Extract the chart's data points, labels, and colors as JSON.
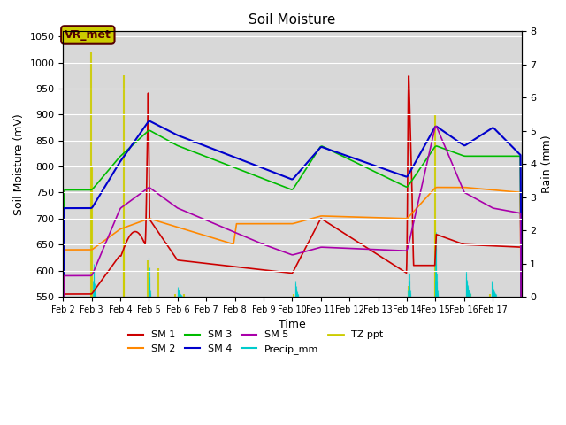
{
  "title": "Soil Moisture",
  "xlabel": "Time",
  "ylabel_left": "Soil Moisture (mV)",
  "ylabel_right": "Rain (mm)",
  "ylim_left": [
    550,
    1060
  ],
  "ylim_right": [
    0.0,
    8.0
  ],
  "yticks_left": [
    550,
    600,
    650,
    700,
    750,
    800,
    850,
    900,
    950,
    1000,
    1050
  ],
  "yticks_right": [
    0.0,
    1.0,
    2.0,
    3.0,
    4.0,
    5.0,
    6.0,
    7.0,
    8.0
  ],
  "xlim": [
    1,
    17
  ],
  "xtick_labels": [
    "Feb 2",
    "Feb 3",
    "Feb 4",
    "Feb 5",
    "Feb 6",
    "Feb 7",
    "Feb 8",
    "Feb 9",
    "Feb 10",
    "Feb 11",
    "Feb 12",
    "Feb 13",
    "Feb 14",
    "Feb 15",
    "Feb 16",
    "Feb 17"
  ],
  "xtick_positions": [
    1,
    2,
    3,
    4,
    5,
    6,
    7,
    8,
    9,
    10,
    11,
    12,
    13,
    14,
    15,
    16
  ],
  "colors": {
    "SM1": "#cc0000",
    "SM2": "#ff8800",
    "SM3": "#00bb00",
    "SM4": "#0000cc",
    "SM5": "#aa00aa",
    "Precip_mm": "#00cccc",
    "TZ_ppt": "#cccc00"
  },
  "bg_color": "#d8d8d8",
  "annotation_text": "VR_met",
  "annotation_box_color": "#cccc00",
  "annotation_text_color": "#550000"
}
